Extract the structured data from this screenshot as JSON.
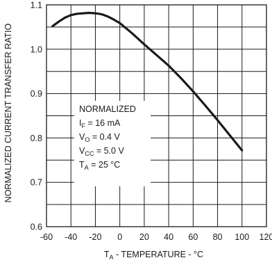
{
  "chart_data": {
    "type": "line",
    "xlabel": {
      "main": "T",
      "sub": "A",
      "rest": " - TEMPERATURE - °C"
    },
    "ylabel": "NORMALIZED CURRENT TRANSFER RATIO",
    "xlim": [
      -60,
      120
    ],
    "ylim": [
      0.6,
      1.1
    ],
    "xticks": [
      -60,
      -40,
      -20,
      0,
      20,
      40,
      60,
      80,
      100,
      120
    ],
    "yticks": [
      0.6,
      0.7,
      0.8,
      0.9,
      1.0,
      1.1
    ],
    "ytick_labels": [
      "0.6",
      "0.7",
      "0.8",
      "0.9",
      "1.0",
      "1.1"
    ],
    "grid": true,
    "series": [
      {
        "x": [
          -55,
          -50,
          -45,
          -40,
          -35,
          -30,
          -25,
          -20,
          -15,
          -10,
          -5,
          0,
          10,
          20,
          25,
          30,
          40,
          50,
          60,
          70,
          80,
          90,
          100
        ],
        "y": [
          1.052,
          1.062,
          1.071,
          1.077,
          1.08,
          1.081,
          1.082,
          1.081,
          1.079,
          1.074,
          1.067,
          1.059,
          1.036,
          1.011,
          0.999,
          0.987,
          0.963,
          0.935,
          0.905,
          0.873,
          0.84,
          0.806,
          0.772
        ]
      }
    ],
    "annotation": {
      "lines": [
        {
          "main": "NORMALIZED",
          "sub": "",
          "rest": ""
        },
        {
          "main": "I",
          "sub": "F",
          "rest": " = 16 mA"
        },
        {
          "main": "V",
          "sub": "O",
          "rest": " = 0.4 V"
        },
        {
          "main": "V",
          "sub": "CC",
          "rest": " = 5.0 V"
        },
        {
          "main": "T",
          "sub": "A",
          "rest": " = 25 °C"
        }
      ]
    }
  }
}
